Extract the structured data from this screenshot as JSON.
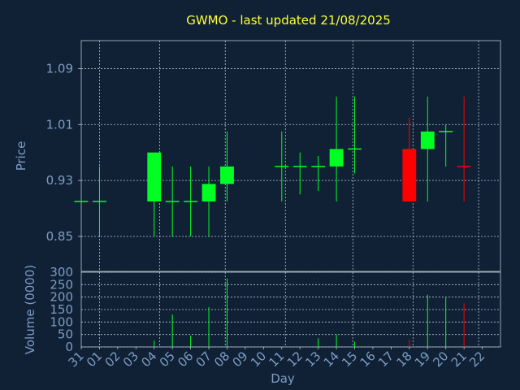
{
  "chart_data": {
    "type": "candlestick",
    "title": "GWMO - last updated 21/08/2025",
    "xlabel": "Day",
    "days": [
      "31",
      "01",
      "02",
      "03",
      "04",
      "05",
      "06",
      "07",
      "08",
      "09",
      "10",
      "11",
      "12",
      "13",
      "14",
      "15",
      "16",
      "17",
      "18",
      "19",
      "20",
      "21",
      "22"
    ],
    "price": {
      "ylabel": "Price",
      "ylim": [
        0.8,
        1.13
      ],
      "yticks": [
        "0.85",
        "0.93",
        "1.01",
        "1.09"
      ],
      "candles": [
        {
          "day": "31",
          "open": 0.9,
          "high": 0.9,
          "low": 0.9,
          "close": 0.9,
          "color": "green"
        },
        {
          "day": "01",
          "open": 0.9,
          "high": 0.95,
          "low": 0.85,
          "close": 0.9,
          "color": "green"
        },
        {
          "day": "04",
          "open": 0.9,
          "high": 0.97,
          "low": 0.85,
          "close": 0.97,
          "color": "green"
        },
        {
          "day": "05",
          "open": 0.9,
          "high": 0.95,
          "low": 0.85,
          "close": 0.9,
          "color": "green"
        },
        {
          "day": "06",
          "open": 0.9,
          "high": 0.95,
          "low": 0.85,
          "close": 0.9,
          "color": "green"
        },
        {
          "day": "07",
          "open": 0.9,
          "high": 0.95,
          "low": 0.85,
          "close": 0.925,
          "color": "green"
        },
        {
          "day": "08",
          "open": 0.925,
          "high": 1.0,
          "low": 0.9,
          "close": 0.95,
          "color": "green"
        },
        {
          "day": "11",
          "open": 0.95,
          "high": 1.0,
          "low": 0.9,
          "close": 0.95,
          "color": "green"
        },
        {
          "day": "12",
          "open": 0.95,
          "high": 0.97,
          "low": 0.91,
          "close": 0.95,
          "color": "green"
        },
        {
          "day": "13",
          "open": 0.95,
          "high": 0.965,
          "low": 0.915,
          "close": 0.95,
          "color": "green"
        },
        {
          "day": "14",
          "open": 0.95,
          "high": 1.05,
          "low": 0.9,
          "close": 0.975,
          "color": "green"
        },
        {
          "day": "15",
          "open": 0.975,
          "high": 1.05,
          "low": 0.94,
          "close": 0.975,
          "color": "green"
        },
        {
          "day": "18",
          "open": 0.975,
          "high": 1.02,
          "low": 0.9,
          "close": 0.9,
          "color": "red"
        },
        {
          "day": "19",
          "open": 0.975,
          "high": 1.05,
          "low": 0.9,
          "close": 1.0,
          "color": "green"
        },
        {
          "day": "20",
          "open": 1.0,
          "high": 1.01,
          "low": 0.95,
          "close": 1.0,
          "color": "green"
        },
        {
          "day": "21",
          "open": 0.95,
          "high": 1.05,
          "low": 0.9,
          "close": 0.95,
          "color": "red"
        }
      ]
    },
    "volume": {
      "ylabel": "Volume (0000)",
      "ylim": [
        0,
        300
      ],
      "yticks": [
        "0",
        "50",
        "100",
        "150",
        "200",
        "250",
        "300"
      ],
      "bars": [
        {
          "day": "04",
          "value": 25,
          "color": "green"
        },
        {
          "day": "05",
          "value": 130,
          "color": "green"
        },
        {
          "day": "06",
          "value": 45,
          "color": "green"
        },
        {
          "day": "07",
          "value": 160,
          "color": "green"
        },
        {
          "day": "08",
          "value": 275,
          "color": "green"
        },
        {
          "day": "13",
          "value": 35,
          "color": "green"
        },
        {
          "day": "14",
          "value": 50,
          "color": "green"
        },
        {
          "day": "15",
          "value": 20,
          "color": "green"
        },
        {
          "day": "18",
          "value": 30,
          "color": "red"
        },
        {
          "day": "19",
          "value": 210,
          "color": "green"
        },
        {
          "day": "20",
          "value": 200,
          "color": "green"
        },
        {
          "day": "21",
          "value": 175,
          "color": "red"
        }
      ]
    },
    "grid": true,
    "colors": {
      "background": "#102136",
      "title": "#ffff33",
      "axis_text": "#7d9cc3",
      "grid": "#b8c3d0",
      "up": "#00ff22",
      "down": "#ff0000"
    }
  }
}
